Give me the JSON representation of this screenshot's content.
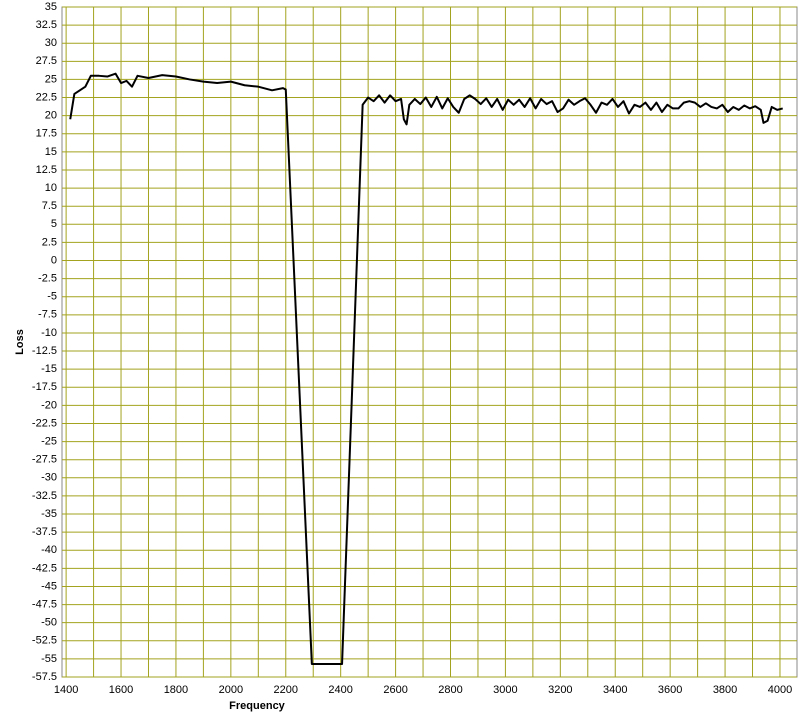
{
  "chart_data": {
    "type": "line",
    "x_label": "Frequency",
    "y_label": "Loss",
    "xlim": [
      1385,
      4062
    ],
    "ylim": [
      -57.5,
      35
    ],
    "xticks": [
      1400,
      1600,
      1800,
      2000,
      2200,
      2400,
      2600,
      2800,
      3000,
      3200,
      3400,
      3600,
      3800,
      4000
    ],
    "x_minor_ticks": [
      1500,
      1700,
      1900,
      2100,
      2300,
      2500,
      2700,
      2900,
      3100,
      3300,
      3500,
      3700,
      3900
    ],
    "yticks": [
      -57.5,
      -55,
      -52.5,
      -50,
      -47.5,
      -45,
      -42.5,
      -40,
      -37.5,
      -35,
      -32.5,
      -30,
      -27.5,
      -25,
      -22.5,
      -20,
      -17.5,
      -15,
      -12.5,
      -10,
      -7.5,
      -5,
      -2.5,
      0,
      2.5,
      5,
      7.5,
      10,
      12.5,
      15,
      17.5,
      20,
      22.5,
      25,
      27.5,
      30,
      32.5,
      35
    ],
    "grid": true,
    "grid_color": "#a3a31f",
    "x": [
      1415,
      1430,
      1450,
      1470,
      1490,
      1520,
      1550,
      1580,
      1600,
      1620,
      1640,
      1660,
      1700,
      1750,
      1800,
      1850,
      1900,
      1950,
      2000,
      2050,
      2100,
      2150,
      2190,
      2200,
      2295,
      2405,
      2480,
      2500,
      2520,
      2540,
      2560,
      2580,
      2600,
      2620,
      2630,
      2640,
      2650,
      2670,
      2690,
      2710,
      2730,
      2750,
      2770,
      2790,
      2810,
      2830,
      2850,
      2870,
      2890,
      2910,
      2930,
      2950,
      2970,
      2990,
      3010,
      3030,
      3050,
      3070,
      3090,
      3110,
      3130,
      3150,
      3170,
      3190,
      3210,
      3230,
      3250,
      3270,
      3290,
      3310,
      3330,
      3350,
      3370,
      3390,
      3410,
      3430,
      3450,
      3470,
      3490,
      3510,
      3530,
      3550,
      3570,
      3590,
      3610,
      3630,
      3650,
      3670,
      3690,
      3710,
      3730,
      3750,
      3770,
      3790,
      3810,
      3830,
      3850,
      3870,
      3890,
      3910,
      3930,
      3940,
      3955,
      3970,
      3990,
      4010
    ],
    "series": [
      {
        "color": "#000000",
        "values": [
          19.5,
          23,
          23.5,
          24,
          25.5,
          25.5,
          25.4,
          25.8,
          24.5,
          24.8,
          24,
          25.5,
          25.2,
          25.6,
          25.4,
          25,
          24.7,
          24.5,
          24.7,
          24.2,
          24,
          23.5,
          23.8,
          23.6,
          -55.7,
          -55.7,
          21.5,
          22.5,
          22,
          22.8,
          21.8,
          22.8,
          22,
          22.3,
          19.5,
          18.8,
          21.5,
          22.3,
          21.6,
          22.5,
          21.2,
          22.6,
          21,
          22.4,
          21.2,
          20.4,
          22.3,
          22.8,
          22.3,
          21.6,
          22.4,
          21.2,
          22.3,
          20.8,
          22.2,
          21.5,
          22.2,
          21.2,
          22.4,
          21,
          22.3,
          21.6,
          22,
          20.5,
          21,
          22.2,
          21.5,
          22,
          22.4,
          21.5,
          20.4,
          21.8,
          21.5,
          22.3,
          21.2,
          22,
          20.3,
          21.5,
          21.2,
          21.8,
          20.8,
          21.8,
          20.5,
          21.5,
          21,
          21,
          21.8,
          22,
          21.8,
          21.2,
          21.7,
          21.2,
          21,
          21.5,
          20.5,
          21.2,
          20.8,
          21.4,
          21,
          21.3,
          20.8,
          19,
          19.3,
          21.2,
          20.8,
          21
        ]
      }
    ]
  }
}
